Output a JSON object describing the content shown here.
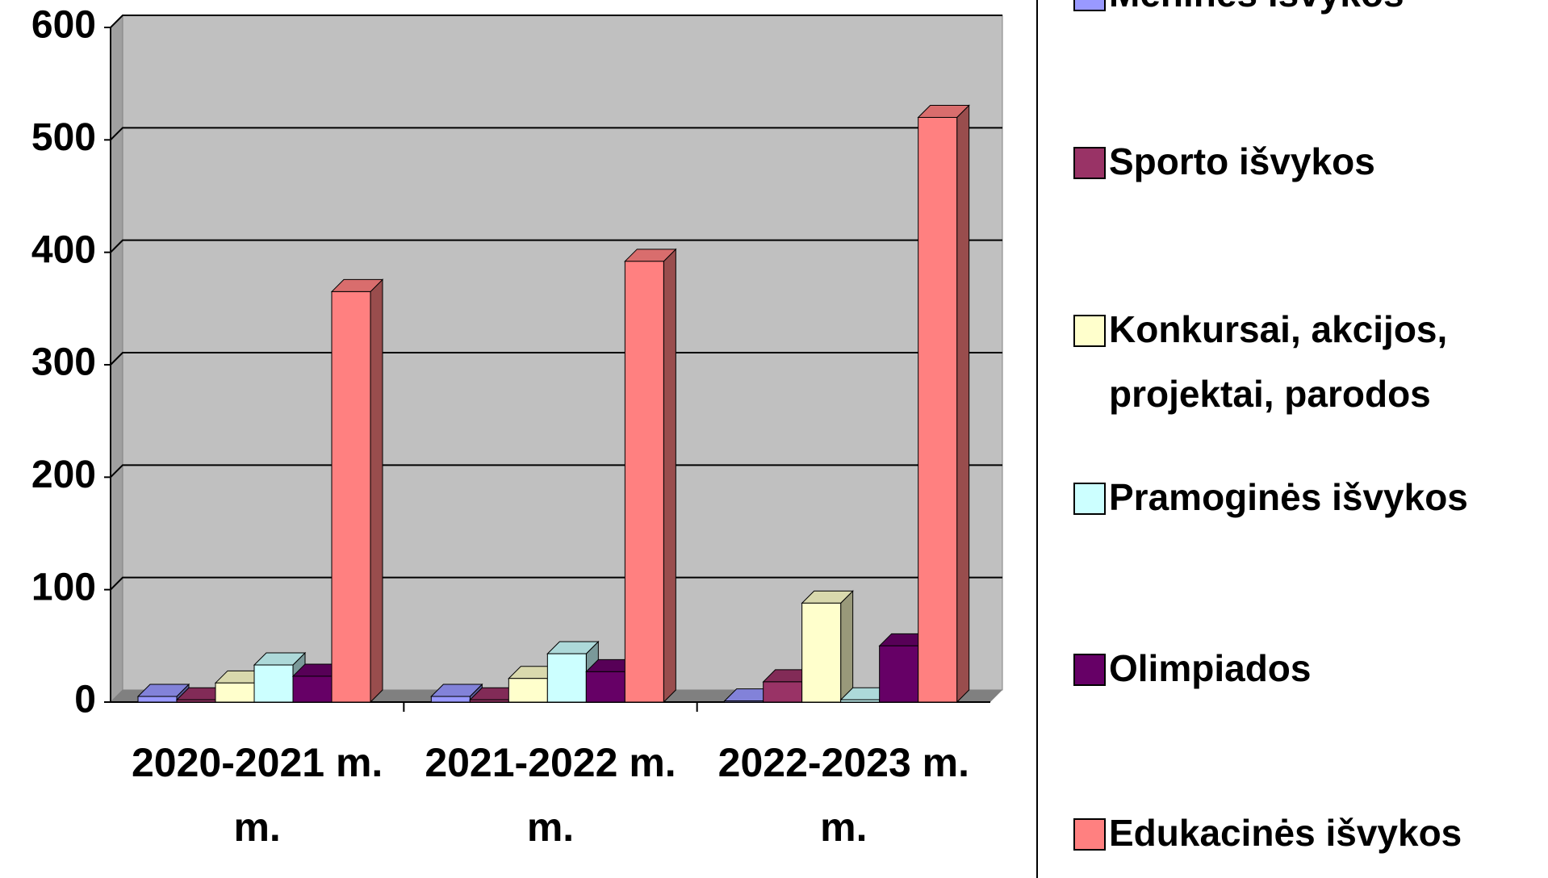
{
  "chart_data": {
    "type": "bar3d",
    "categories": [
      "2020-2021 m. m.",
      "2021-2022 m. m.",
      "2022-2023 m. m."
    ],
    "series": [
      {
        "name": "Meninės išvykos",
        "color": "#9999ff",
        "values": [
          5,
          5,
          1
        ]
      },
      {
        "name": "Sporto išvykos",
        "color": "#993366",
        "values": [
          2,
          2,
          18
        ]
      },
      {
        "name": "Konkursai, akcijos, projektai, parodos",
        "color": "#ffffcc",
        "values": [
          17,
          21,
          88
        ]
      },
      {
        "name": "Pramoginės išvykos",
        "color": "#ccffff",
        "values": [
          33,
          43,
          2
        ]
      },
      {
        "name": "Olimpiados",
        "color": "#660066",
        "values": [
          23,
          27,
          50
        ]
      },
      {
        "name": "Edukacinės išvykos",
        "color": "#ff8080",
        "values": [
          365,
          392,
          520
        ]
      }
    ],
    "ylim": [
      0,
      600
    ],
    "yticks": [
      0,
      100,
      200,
      300,
      400,
      500,
      600
    ],
    "grid": true,
    "legend": "right"
  }
}
